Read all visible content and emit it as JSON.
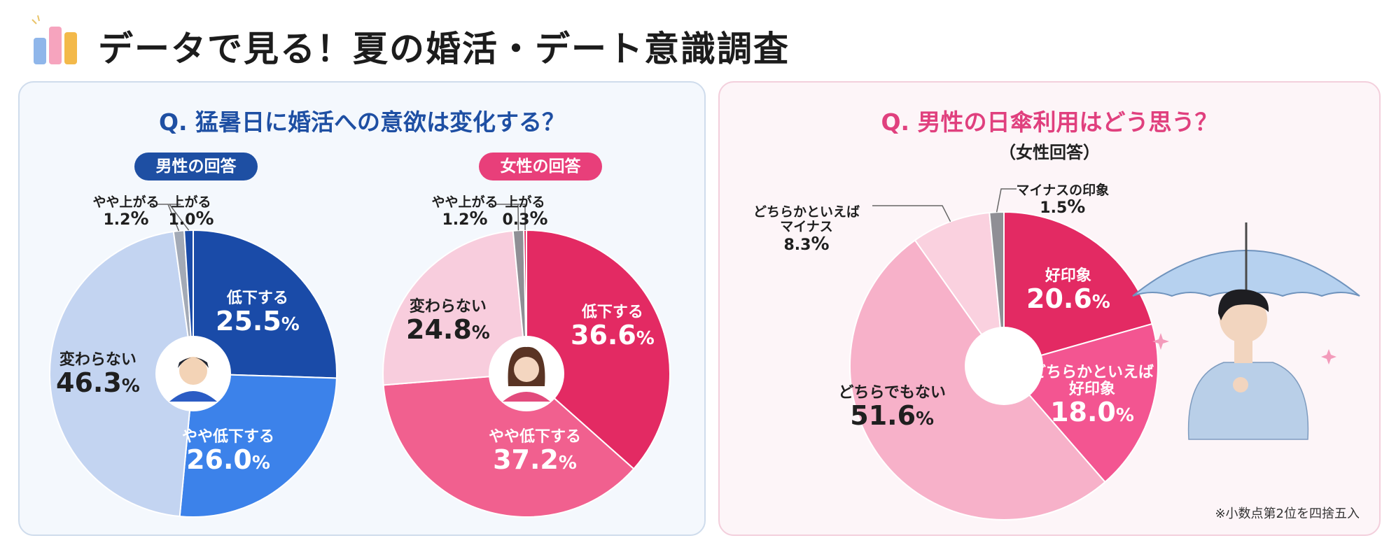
{
  "title": "データで見る！夏の婚活・デート意識調査",
  "panels": {
    "left": {
      "question": "Q. 猛暑日に婚活への意欲は変化する？",
      "male_badge": "男性の回答",
      "female_badge": "女性の回答"
    },
    "right": {
      "question": "Q. 男性の日傘利用はどう思う？",
      "subtitle": "（女性回答）",
      "footnote": "※小数点第2位を四捨五入"
    }
  },
  "colors": {
    "male": [
      "#1a4ba8",
      "#3c82ea",
      "#c3d4f1",
      "#a3aab6",
      "#1a4ba8"
    ],
    "female": [
      "#e32a63",
      "#f1608f",
      "#f8cddd",
      "#8f8f95",
      "#e32a63"
    ],
    "umbrella": [
      "#e32a63",
      "#f35591",
      "#f7b1c9",
      "#fad1df",
      "#8f8f95"
    ]
  },
  "chart_data": [
    {
      "type": "pie",
      "title": "男性の回答",
      "categories": [
        "低下する",
        "やや低下する",
        "変わらない",
        "やや上がる",
        "上がる"
      ],
      "values": [
        25.5,
        26.0,
        46.3,
        1.2,
        1.0
      ],
      "value_labels": [
        "25.5",
        "26.0",
        "46.3",
        "1.2",
        "1.0"
      ],
      "unit": "%"
    },
    {
      "type": "pie",
      "title": "女性の回答",
      "categories": [
        "低下する",
        "やや低下する",
        "変わらない",
        "やや上がる",
        "上がる"
      ],
      "values": [
        36.6,
        37.2,
        24.8,
        1.2,
        0.3
      ],
      "value_labels": [
        "36.6",
        "37.2",
        "24.8",
        "1.2",
        "0.3"
      ],
      "unit": "%"
    },
    {
      "type": "pie",
      "title": "（女性回答）",
      "categories": [
        "好印象",
        "どちらかといえば好印象",
        "どちらでもない",
        "どちらかといえばマイナス",
        "マイナスの印象"
      ],
      "label_lines": [
        [
          "好印象"
        ],
        [
          "どちらかといえば",
          "好印象"
        ],
        [
          "どちらでもない"
        ],
        [
          "どちらかといえば",
          "マイナス"
        ],
        [
          "マイナスの印象"
        ]
      ],
      "values": [
        20.6,
        18.0,
        51.6,
        8.3,
        1.5
      ],
      "value_labels": [
        "20.6",
        "18.0",
        "51.6",
        "8.3",
        "1.5"
      ],
      "unit": "%"
    }
  ]
}
